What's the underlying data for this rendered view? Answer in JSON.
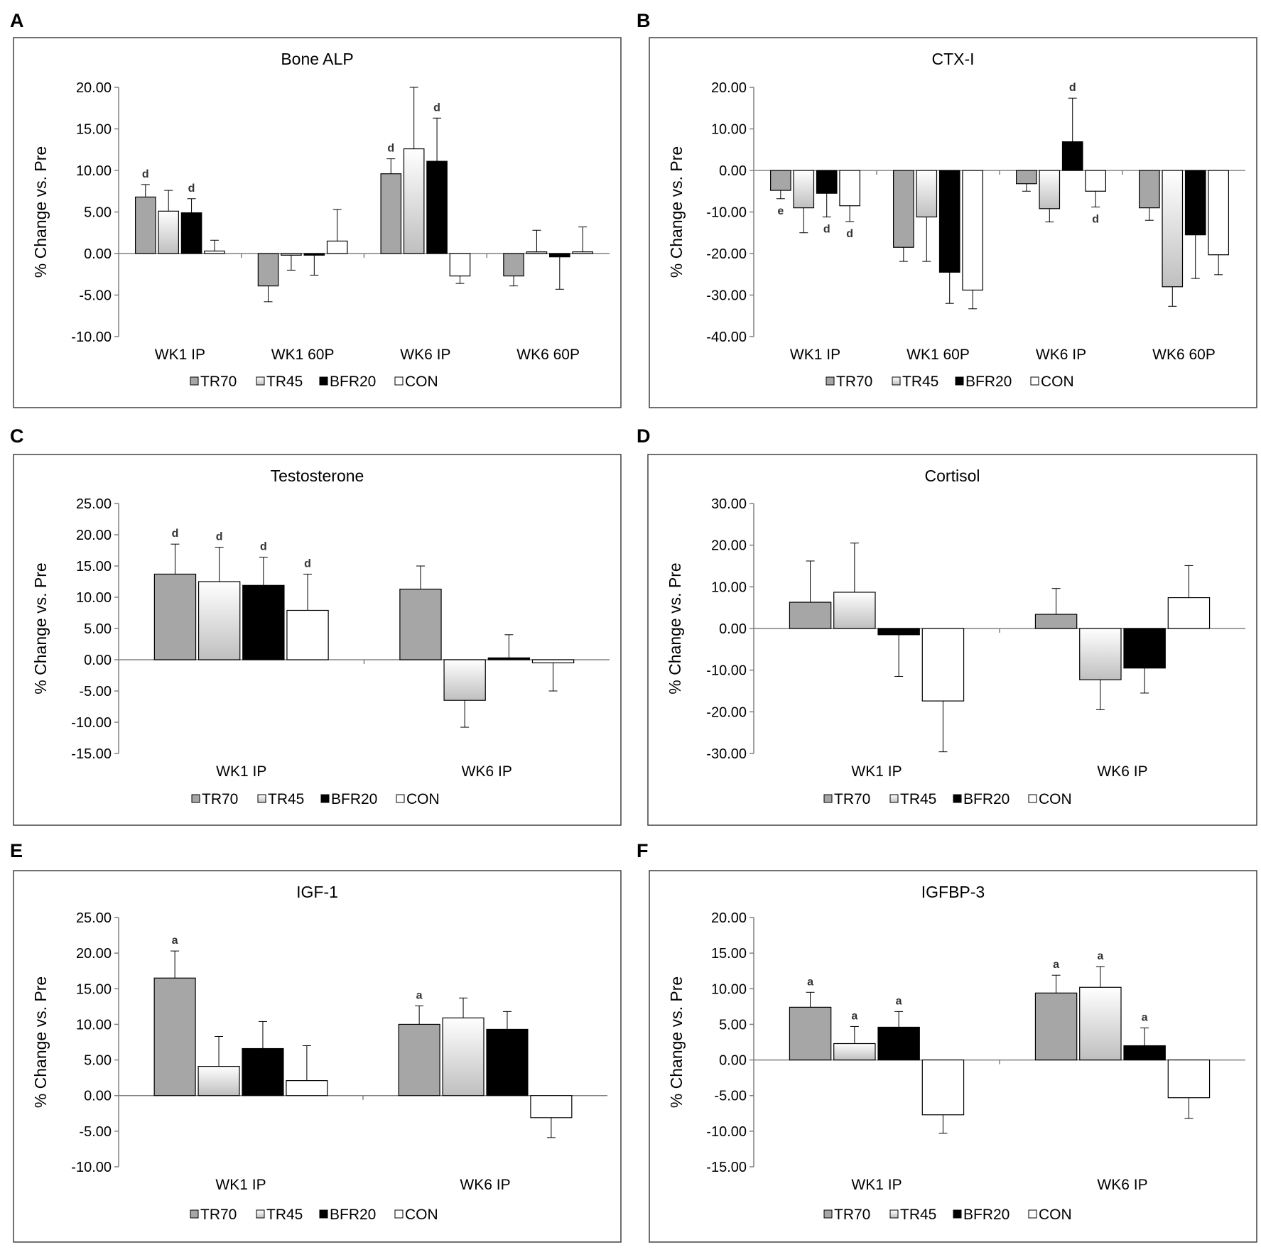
{
  "legend": {
    "labels": [
      "TR70",
      "TR45",
      "BFR20",
      "CON"
    ]
  },
  "colors": {
    "TR70": "#a6a6a6",
    "BFR20": "#000000",
    "CON": "#ffffff",
    "TR45_gradient_top": "#ffffff",
    "TR45_gradient_bottom": "#bfbfbf",
    "axis": "#808080",
    "frame": "#404040"
  },
  "chart_data": [
    {
      "panel": "A",
      "type": "bar",
      "title": "Bone ALP",
      "xlabel": "",
      "ylabel": "% Change vs. Pre",
      "ylim": [
        -10,
        20
      ],
      "ystep": 5,
      "yticks": [
        "20.00",
        "15.00",
        "10.00",
        "5.00",
        "0.00",
        "-5.00",
        "-10.00"
      ],
      "grid": false,
      "legend_position": "bottom",
      "categories": [
        "WK1 IP",
        "WK1 60P",
        "WK6 IP",
        "WK6 60P"
      ],
      "series": [
        {
          "name": "TR70",
          "values": [
            6.8,
            -3.9,
            9.6,
            -2.7
          ],
          "errors": [
            1.5,
            1.9,
            1.8,
            1.2
          ],
          "labels": [
            "d",
            "",
            "d",
            ""
          ]
        },
        {
          "name": "TR45",
          "values": [
            5.1,
            -0.2,
            12.6,
            0.2
          ],
          "errors": [
            2.5,
            1.8,
            7.4,
            2.6
          ],
          "labels": [
            "",
            "",
            "",
            ""
          ]
        },
        {
          "name": "BFR20",
          "values": [
            4.9,
            -0.2,
            11.1,
            -0.4
          ],
          "errors": [
            1.7,
            2.4,
            5.2,
            3.9
          ],
          "labels": [
            "d",
            "",
            "d",
            ""
          ]
        },
        {
          "name": "CON",
          "values": [
            0.3,
            1.5,
            -2.7,
            0.2
          ],
          "errors": [
            1.3,
            3.8,
            0.9,
            3.0
          ],
          "labels": [
            "",
            "",
            "",
            ""
          ]
        }
      ]
    },
    {
      "panel": "B",
      "type": "bar",
      "title": "CTX-I",
      "xlabel": "",
      "ylabel": "% Change vs. Pre",
      "ylim": [
        -40,
        20
      ],
      "ystep": 10,
      "yticks": [
        "20.00",
        "10.00",
        "0.00",
        "-10.00",
        "-20.00",
        "-30.00",
        "-40.00"
      ],
      "grid": false,
      "legend_position": "bottom",
      "categories": [
        "WK1 IP",
        "WK1 60P",
        "WK6 IP",
        "WK6 60P"
      ],
      "series": [
        {
          "name": "TR70",
          "values": [
            -4.8,
            -18.5,
            -3.2,
            -9.0
          ],
          "errors": [
            2.0,
            3.4,
            1.8,
            3.0
          ],
          "labels": [
            "e",
            "",
            "",
            ""
          ]
        },
        {
          "name": "TR45",
          "values": [
            -9.0,
            -11.2,
            -9.2,
            -28.0
          ],
          "errors": [
            6.0,
            10.7,
            3.2,
            4.7
          ],
          "labels": [
            "",
            "",
            "",
            ""
          ]
        },
        {
          "name": "BFR20",
          "values": [
            -5.5,
            -24.5,
            6.9,
            -15.5
          ],
          "errors": [
            5.7,
            7.5,
            10.5,
            10.5
          ],
          "labels": [
            "d",
            "",
            "d",
            ""
          ]
        },
        {
          "name": "CON",
          "values": [
            -8.5,
            -28.8,
            -5.0,
            -20.3
          ],
          "errors": [
            3.8,
            4.5,
            3.8,
            4.8
          ],
          "labels": [
            "d",
            "",
            "d",
            ""
          ]
        }
      ]
    },
    {
      "panel": "C",
      "type": "bar",
      "title": "Testosterone",
      "xlabel": "",
      "ylabel": "% Change vs. Pre",
      "ylim": [
        -15,
        25
      ],
      "ystep": 5,
      "yticks": [
        "25.00",
        "20.00",
        "15.00",
        "10.00",
        "5.00",
        "0.00",
        "-5.00",
        "-10.00",
        "-15.00"
      ],
      "grid": false,
      "legend_position": "bottom",
      "categories": [
        "WK1 IP",
        "WK6 IP"
      ],
      "series": [
        {
          "name": "TR70",
          "values": [
            13.7,
            11.3
          ],
          "errors": [
            4.8,
            3.7
          ],
          "labels": [
            "d",
            ""
          ]
        },
        {
          "name": "TR45",
          "values": [
            12.5,
            -6.5
          ],
          "errors": [
            5.5,
            4.3
          ],
          "labels": [
            "d",
            ""
          ]
        },
        {
          "name": "BFR20",
          "values": [
            11.9,
            0.3
          ],
          "errors": [
            4.5,
            3.7
          ],
          "labels": [
            "d",
            ""
          ]
        },
        {
          "name": "CON",
          "values": [
            7.9,
            -0.5
          ],
          "errors": [
            5.8,
            4.5
          ],
          "labels": [
            "d",
            ""
          ]
        }
      ]
    },
    {
      "panel": "D",
      "type": "bar",
      "title": "Cortisol",
      "xlabel": "",
      "ylabel": "% Change vs. Pre",
      "ylim": [
        -30,
        30
      ],
      "ystep": 10,
      "yticks": [
        "30.00",
        "20.00",
        "10.00",
        "0.00",
        "-10.00",
        "-20.00",
        "-30.00"
      ],
      "grid": false,
      "legend_position": "bottom",
      "categories": [
        "WK1 IP",
        "WK6 IP"
      ],
      "series": [
        {
          "name": "TR70",
          "values": [
            6.3,
            3.4
          ],
          "errors": [
            9.9,
            6.2
          ],
          "labels": [
            "",
            ""
          ]
        },
        {
          "name": "TR45",
          "values": [
            8.7,
            -12.3
          ],
          "errors": [
            11.8,
            7.2
          ],
          "labels": [
            "",
            ""
          ]
        },
        {
          "name": "BFR20",
          "values": [
            -1.5,
            -9.5
          ],
          "errors": [
            10.0,
            6.0
          ],
          "labels": [
            "",
            ""
          ]
        },
        {
          "name": "CON",
          "values": [
            -17.4,
            7.4
          ],
          "errors": [
            12.2,
            7.7
          ],
          "labels": [
            "",
            ""
          ]
        }
      ]
    },
    {
      "panel": "E",
      "type": "bar",
      "title": "IGF-1",
      "xlabel": "",
      "ylabel": "% Change vs. Pre",
      "ylim": [
        -10,
        25
      ],
      "ystep": 5,
      "yticks": [
        "25.00",
        "20.00",
        "15.00",
        "10.00",
        "5.00",
        "0.00",
        "-5.00",
        "-10.00"
      ],
      "grid": false,
      "legend_position": "bottom",
      "categories": [
        "WK1 IP",
        "WK6 IP"
      ],
      "series": [
        {
          "name": "TR70",
          "values": [
            16.5,
            10.0
          ],
          "errors": [
            3.8,
            2.6
          ],
          "labels": [
            "a",
            "a"
          ]
        },
        {
          "name": "TR45",
          "values": [
            4.1,
            10.9
          ],
          "errors": [
            4.2,
            2.8
          ],
          "labels": [
            "",
            ""
          ]
        },
        {
          "name": "BFR20",
          "values": [
            6.6,
            9.3
          ],
          "errors": [
            3.8,
            2.5
          ],
          "labels": [
            "",
            ""
          ]
        },
        {
          "name": "CON",
          "values": [
            2.1,
            -3.1
          ],
          "errors": [
            4.9,
            2.8
          ],
          "labels": [
            "",
            ""
          ]
        }
      ]
    },
    {
      "panel": "F",
      "type": "bar",
      "title": "IGFBP-3",
      "xlabel": "",
      "ylabel": "% Change vs. Pre",
      "ylim": [
        -15,
        20
      ],
      "ystep": 5,
      "yticks": [
        "20.00",
        "15.00",
        "10.00",
        "5.00",
        "0.00",
        "-5.00",
        "-10.00",
        "-15.00"
      ],
      "grid": false,
      "legend_position": "bottom",
      "categories": [
        "WK1 IP",
        "WK6 IP"
      ],
      "series": [
        {
          "name": "TR70",
          "values": [
            7.4,
            9.4
          ],
          "errors": [
            2.1,
            2.5
          ],
          "labels": [
            "a",
            "a"
          ]
        },
        {
          "name": "TR45",
          "values": [
            2.3,
            10.2
          ],
          "errors": [
            2.4,
            2.9
          ],
          "labels": [
            "a",
            "a"
          ]
        },
        {
          "name": "BFR20",
          "values": [
            4.6,
            2.0
          ],
          "errors": [
            2.2,
            2.5
          ],
          "labels": [
            "a",
            "a"
          ]
        },
        {
          "name": "CON",
          "values": [
            -7.7,
            -5.3
          ],
          "errors": [
            2.6,
            2.9
          ],
          "labels": [
            "",
            ""
          ]
        }
      ]
    }
  ]
}
